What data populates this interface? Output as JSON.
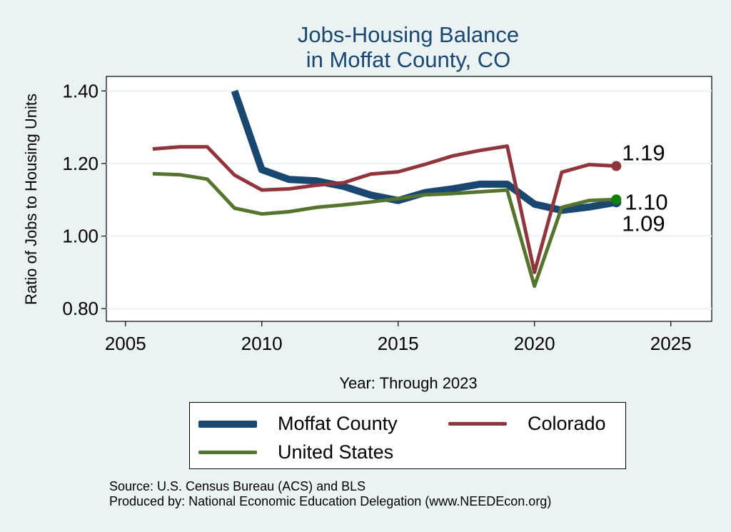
{
  "chart_data": {
    "type": "line",
    "title": [
      "Jobs-Housing Balance",
      "in Moffat County, CO"
    ],
    "xlabel": "Year: Through 2023",
    "ylabel": "Ratio of Jobs to Housing Units",
    "xlim": [
      2004.3,
      2026.5
    ],
    "ylim": [
      0.765,
      1.44
    ],
    "xticks": [
      2005,
      2010,
      2015,
      2020,
      2025
    ],
    "yticks": [
      0.8,
      1.0,
      1.2,
      1.4
    ],
    "ytick_labels": [
      "0.80",
      "1.00",
      "1.20",
      "1.40"
    ],
    "grid": true,
    "series": [
      {
        "name": "Moffat County",
        "color": "#1a476f",
        "width": "thick",
        "x": [
          2009,
          2010,
          2011,
          2012,
          2013,
          2014,
          2015,
          2016,
          2017,
          2018,
          2019,
          2020,
          2021,
          2022,
          2023
        ],
        "y": [
          1.4,
          1.183,
          1.156,
          1.152,
          1.137,
          1.113,
          1.098,
          1.12,
          1.13,
          1.143,
          1.143,
          1.088,
          1.071,
          1.08,
          1.093
        ],
        "end_label": "1.09"
      },
      {
        "name": "Colorado",
        "color": "#90353b",
        "width": "medium",
        "x": [
          2006,
          2007,
          2008,
          2009,
          2010,
          2011,
          2012,
          2013,
          2014,
          2015,
          2016,
          2017,
          2018,
          2019,
          2020,
          2021,
          2022,
          2023
        ],
        "y": [
          1.24,
          1.246,
          1.246,
          1.168,
          1.127,
          1.13,
          1.14,
          1.147,
          1.171,
          1.177,
          1.198,
          1.221,
          1.236,
          1.248,
          0.9,
          1.176,
          1.197,
          1.193
        ],
        "end_label": "1.19"
      },
      {
        "name": "United States",
        "color": "#55752f",
        "width": "medium",
        "x": [
          2006,
          2007,
          2008,
          2009,
          2010,
          2011,
          2012,
          2013,
          2014,
          2015,
          2016,
          2017,
          2018,
          2019,
          2020,
          2021,
          2022,
          2023
        ],
        "y": [
          1.172,
          1.169,
          1.157,
          1.077,
          1.061,
          1.067,
          1.079,
          1.086,
          1.094,
          1.103,
          1.114,
          1.117,
          1.122,
          1.127,
          0.862,
          1.079,
          1.098,
          1.101
        ],
        "end_label": "1.10",
        "end_marker_color": "#12800f"
      }
    ]
  },
  "legend": {
    "items": [
      {
        "label": "Moffat County",
        "color": "#1a476f"
      },
      {
        "label": "Colorado",
        "color": "#90353b"
      },
      {
        "label": "United States",
        "color": "#55752f"
      }
    ]
  },
  "footer": {
    "source": "Source: U.S. Census Bureau (ACS) and BLS",
    "produced": "Produced by: National Economic Education Delegation (www.NEEDEcon.org)"
  }
}
